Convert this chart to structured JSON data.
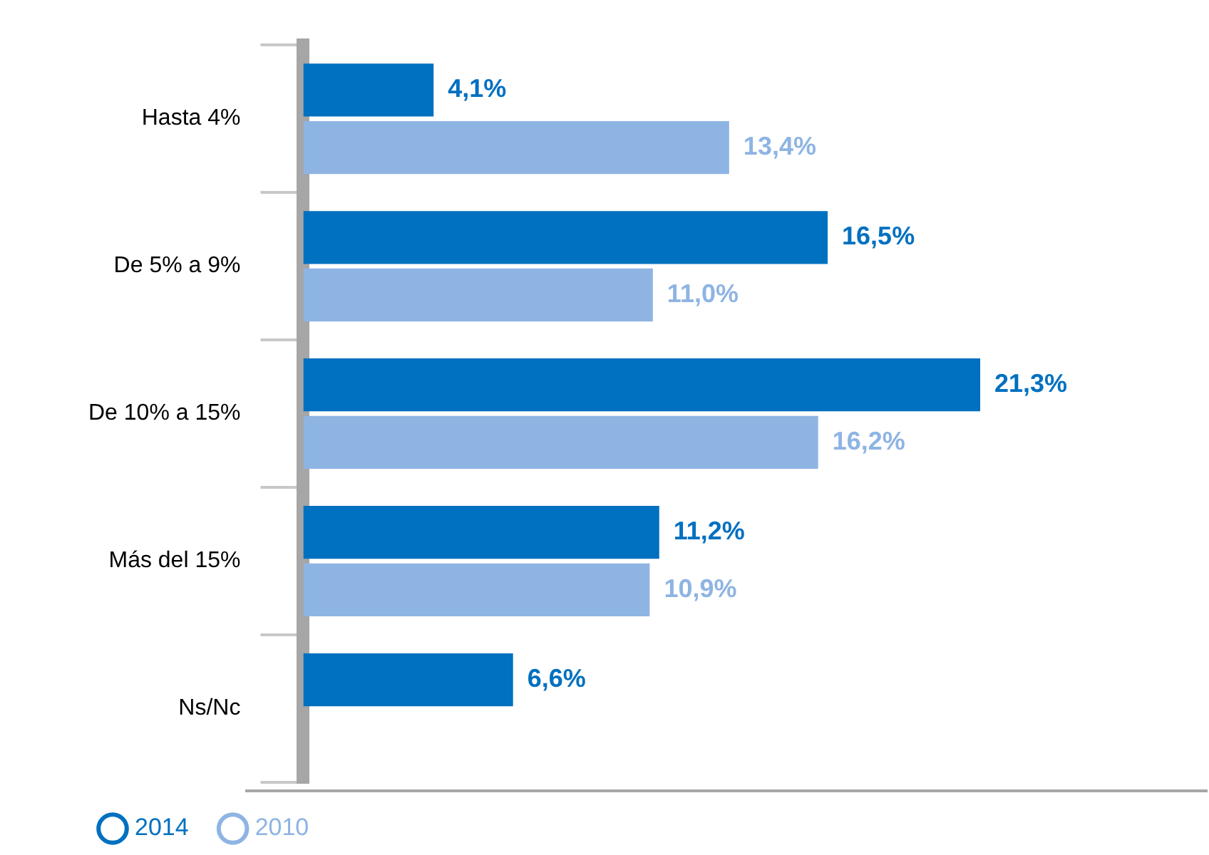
{
  "chart_data": {
    "type": "bar",
    "orientation": "horizontal",
    "categories": [
      "Hasta 4%",
      "De 5% a 9%",
      "De 10% a 15%",
      "Más del 15%",
      "Ns/Nc"
    ],
    "series": [
      {
        "name": "2014",
        "color": "#0070c0",
        "values": [
          4.1,
          16.5,
          21.3,
          11.2,
          6.6
        ],
        "value_labels": [
          "4,1%",
          "16,5%",
          "21,3%",
          "11,2%",
          "6,6%"
        ]
      },
      {
        "name": "2010",
        "color": "#8eb4e3",
        "values": [
          13.4,
          11.0,
          16.2,
          10.9,
          null
        ],
        "value_labels": [
          "13,4%",
          "11,0%",
          "16,2%",
          "10,9%",
          null
        ]
      }
    ],
    "tick_labels": "y",
    "legend": "bottom left"
  }
}
